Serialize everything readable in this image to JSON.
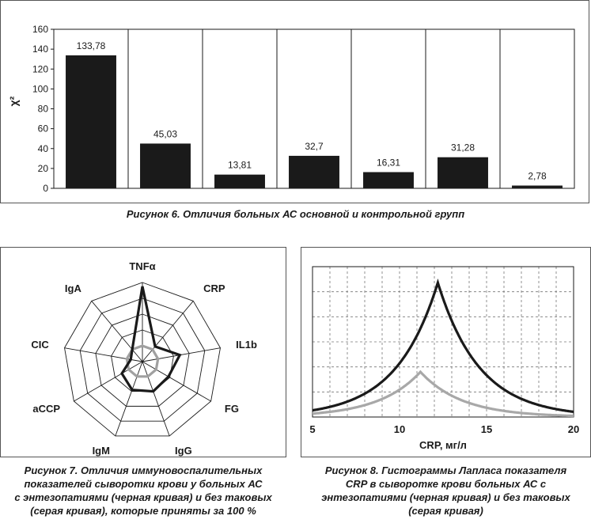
{
  "chart_data": [
    {
      "type": "bar",
      "categories": [
        "",
        "",
        "",
        "",
        "",
        "",
        ""
      ],
      "values": [
        133.78,
        45.03,
        13.81,
        32.7,
        16.31,
        31.28,
        2.78
      ],
      "value_labels": [
        "133,78",
        "45,03",
        "13,81",
        "32,7",
        "16,31",
        "31,28",
        "2,78"
      ],
      "ylabel": "χ²",
      "ylim": [
        0,
        160
      ],
      "yticks": [
        "0",
        "20",
        "40",
        "60",
        "80",
        "100",
        "120",
        "140",
        "160"
      ],
      "bar_color": "#1a1a1a",
      "grid": "vertical separators between categories",
      "caption": "Рисунок 6. Отличия больных АС основной и контрольной групп"
    },
    {
      "type": "radar",
      "axes": [
        "TNFα",
        "CRP",
        "IL1b",
        "FG",
        "IgG",
        "IgM",
        "aCCP",
        "CIC",
        "IgA"
      ],
      "rings": 5,
      "series": [
        {
          "color": "#1a1a1a",
          "values": [
            95,
            25,
            48,
            38,
            40,
            38,
            30,
            15,
            20
          ]
        },
        {
          "color": "#a0a0a0",
          "values": [
            20,
            20,
            20,
            20,
            20,
            20,
            20,
            20,
            20
          ]
        }
      ],
      "caption_lines": [
        "Рисунок 7. Отличия иммуновоспалительных",
        "показателей сыворотки крови у больных АС",
        "с энтезопатиями (черная кривая) и без таковых",
        "(серая кривая), которые приняты за 100 %"
      ]
    },
    {
      "type": "line",
      "xlabel": "CRP, мг/л",
      "xlim": [
        5,
        20
      ],
      "xticks": [
        "5",
        "10",
        "15",
        "20"
      ],
      "grid": true,
      "series": [
        {
          "color": "#1a1a1a",
          "center": 12.2,
          "scale": 2.4,
          "x": [
            5,
            6,
            7,
            8,
            9,
            10,
            11,
            12.2,
            13,
            14,
            15,
            16,
            17,
            18,
            19,
            20
          ],
          "y": [
            0.31,
            0.42,
            0.5,
            0.6,
            0.73,
            0.89,
            1.08,
            1.34,
            1.11,
            0.93,
            0.77,
            0.64,
            0.54,
            0.45,
            0.37,
            0.31
          ]
        },
        {
          "color": "#a8a8a8",
          "center": 11.2,
          "scale": 2.4,
          "x": [
            5,
            6,
            7,
            8,
            9,
            10,
            11.2,
            12,
            13,
            14,
            15,
            16,
            17,
            18,
            19,
            20
          ],
          "y": [
            0.04,
            0.06,
            0.1,
            0.15,
            0.22,
            0.3,
            0.45,
            0.34,
            0.25,
            0.18,
            0.14,
            0.1,
            0.08,
            0.06,
            0.05,
            0.04
          ]
        }
      ],
      "caption_lines": [
        "Рисунок 8. Гистограммы Лапласа показателя",
        "CRP в сыворотке крови больных АС с",
        "энтезопатиями (черная кривая) и без таковых",
        "(серая кривая)"
      ]
    }
  ]
}
